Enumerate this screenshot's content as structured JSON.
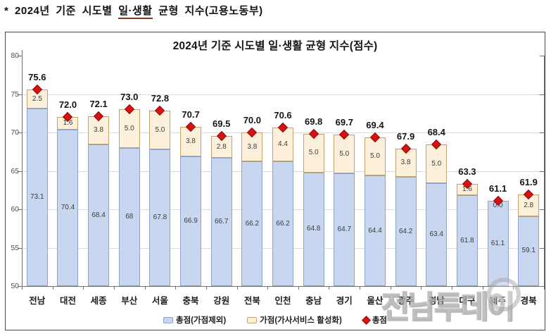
{
  "note": {
    "pre": "* 2024년 기준 시도별 ",
    "underlined": "일·생활",
    "post": " 균형 지수(고용노동부)"
  },
  "chart_data": {
    "type": "bar",
    "subtype": "stacked-with-total-markers",
    "title": "2024년 기준 시도별 일·생활 균형 지수(점수)",
    "categories": [
      "전남",
      "대전",
      "세종",
      "부산",
      "서울",
      "충북",
      "강원",
      "전북",
      "인천",
      "충남",
      "경기",
      "울산",
      "광주",
      "경남",
      "대구",
      "제주",
      "경북"
    ],
    "series": [
      {
        "name": "총점(가점제외)",
        "values": [
          73.1,
          70.4,
          68.4,
          68,
          67.8,
          66.9,
          66.7,
          66.2,
          66.2,
          64.8,
          64.7,
          64.4,
          64.2,
          63.4,
          61.8,
          61.1,
          59.1
        ]
      },
      {
        "name": "가점(가사서비스 활성화)",
        "values": [
          2.5,
          1.6,
          3.8,
          5.0,
          5.0,
          3.8,
          2.8,
          3.8,
          4.4,
          5.0,
          5.0,
          5.0,
          3.8,
          5.0,
          1.6,
          0.0,
          2.8
        ]
      },
      {
        "name": "총점",
        "values": [
          75.6,
          72.0,
          72.1,
          73.0,
          72.8,
          70.7,
          69.5,
          70.0,
          70.6,
          69.8,
          69.7,
          69.4,
          67.9,
          68.4,
          63.3,
          61.1,
          61.9
        ]
      }
    ],
    "base_labels": [
      "73.1",
      "70.4",
      "68.4",
      "68",
      "67.8",
      "66.9",
      "66.7",
      "66.2",
      "66.2",
      "64.8",
      "64.7",
      "64.4",
      "64.2",
      "63.4",
      "61.8",
      "61.1",
      "59.1"
    ],
    "bonus_labels": [
      "2.5",
      "1.6",
      "3.8",
      "5.0",
      "5.0",
      "3.8",
      "2.8",
      "3.8",
      "4.4",
      "5.0",
      "5.0",
      "5.0",
      "3.8",
      "5.0",
      "1.6",
      "0.0",
      "2.8"
    ],
    "total_labels": [
      "75.6",
      "72.0",
      "72.1",
      "73.0",
      "72.8",
      "70.7",
      "69.5",
      "70.0",
      "70.6",
      "69.8",
      "69.7",
      "69.4",
      "67.9",
      "68.4",
      "63.3",
      "61.1",
      "61.9"
    ],
    "ylim": [
      50,
      80
    ],
    "yticks": [
      "80",
      "75",
      "70",
      "65",
      "60",
      "55",
      "50"
    ],
    "ytick_values": [
      80,
      75,
      70,
      65,
      60,
      55,
      50
    ],
    "grid": true,
    "legend_position": "bottom",
    "colors": {
      "bar_base_fill": "#c8d6f0",
      "bar_base_border": "#8fa4c9",
      "bar_bonus_fill": "#fdf0da",
      "bar_bonus_border": "#c2a173",
      "diamond_fill": "#d61310",
      "diamond_border": "#8e0b09",
      "grid": "#dadada",
      "axis": "#6f6f6f"
    }
  },
  "legend": {
    "items": [
      {
        "label": "총점(가점제외)",
        "marker": "blue-box"
      },
      {
        "label": "가점(가사서비스 활성화)",
        "marker": "beige-box"
      },
      {
        "label": "총점",
        "marker": "red-diamond"
      }
    ]
  },
  "watermark": {
    "text": "전남투데이"
  }
}
